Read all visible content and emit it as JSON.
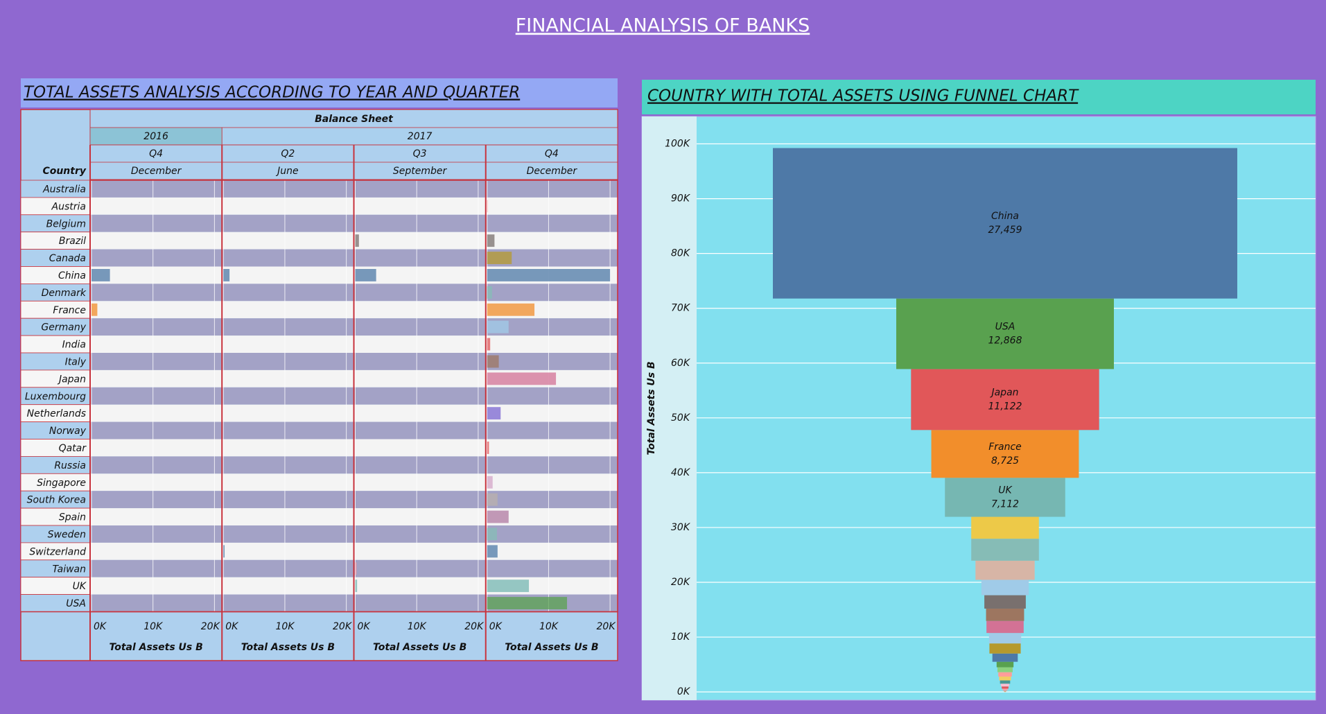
{
  "title": "FINANCIAL ANALYSIS OF BANKS",
  "chart_data": [
    {
      "type": "bar-table",
      "title": "TOTAL ASSETS ANALYSIS ACCORDING TO YEAR AND QUARTER",
      "header": "Balance Sheet",
      "row_header": "Country",
      "x_label": "Total Assets Us B",
      "categories": [
        "Australia",
        "Austria",
        "Belgium",
        "Brazil",
        "Canada",
        "China",
        "Denmark",
        "France",
        "Germany",
        "India",
        "Italy",
        "Japan",
        "Luxembourg",
        "Netherlands",
        "Norway",
        "Qatar",
        "Russia",
        "Singapore",
        "South Korea",
        "Spain",
        "Sweden",
        "Switzerland",
        "Taiwan",
        "UK",
        "USA"
      ],
      "colors": [
        "#a0cbe8",
        "#ff9d9a",
        "#8cd17d",
        "#79706e",
        "#b6992d",
        "#4e79a7",
        "#86bcb6",
        "#f28e2b",
        "#a0cbe8",
        "#e15759",
        "#9d7660",
        "#d37295",
        "#f1ce63",
        "#7b66d2",
        "#499894",
        "#e15759",
        "#fabfd2",
        "#d4a6c8",
        "#bab0ac",
        "#b07aa1",
        "#86bcb6",
        "#4e79a7",
        "#ff9da7",
        "#76b7b2",
        "#59a14f"
      ],
      "xlim": [
        0,
        21000
      ],
      "xticks": [
        {
          "value": 0,
          "label": "0K"
        },
        {
          "value": 10000,
          "label": "10K"
        },
        {
          "value": 20000,
          "label": "20K"
        }
      ],
      "years": [
        {
          "name": "2016",
          "series": [
            {
              "quarter": "Q4",
              "month": "December",
              "values": [
                0,
                0,
                0,
                0,
                0,
                3000,
                0,
                950,
                0,
                0,
                0,
                0,
                0,
                0,
                0,
                0,
                0,
                0,
                0,
                0,
                0,
                0,
                0,
                0,
                0
              ]
            }
          ]
        },
        {
          "name": "2017",
          "series": [
            {
              "quarter": "Q2",
              "month": "June",
              "values": [
                0,
                0,
                0,
                0,
                0,
                1000,
                0,
                0,
                0,
                0,
                0,
                0,
                0,
                0,
                0,
                0,
                0,
                0,
                0,
                0,
                0,
                200,
                0,
                0,
                0
              ]
            },
            {
              "quarter": "Q3",
              "month": "September",
              "values": [
                0,
                0,
                0,
                600,
                0,
                3400,
                0,
                0,
                0,
                0,
                0,
                0,
                0,
                0,
                0,
                0,
                0,
                0,
                0,
                0,
                0,
                0,
                200,
                300,
                0
              ]
            },
            {
              "quarter": "Q4",
              "month": "December",
              "values": [
                0,
                100,
                0,
                1200,
                4000,
                20000,
                800,
                7700,
                3500,
                500,
                1900,
                11200,
                0,
                2200,
                0,
                300,
                0,
                900,
                1700,
                3500,
                1600,
                1700,
                0,
                6800,
                13000
              ]
            }
          ]
        }
      ]
    },
    {
      "type": "funnel",
      "title": "COUNTRY WITH TOTAL ASSETS USING FUNNEL CHART",
      "y_label": "Total Assets Us B",
      "categories": [
        "China",
        "USA",
        "Japan",
        "France",
        "UK",
        null,
        null,
        null,
        null,
        null,
        null,
        null,
        null,
        null,
        null,
        null,
        null,
        null,
        null,
        null,
        null,
        null,
        null,
        null,
        null
      ],
      "values": [
        27459,
        12868,
        11122,
        8725,
        7112,
        4000,
        4000,
        3500,
        2800,
        2450,
        2250,
        2200,
        1900,
        1850,
        1500,
        1000,
        900,
        800,
        700,
        600,
        500,
        400,
        300,
        200,
        100
      ],
      "value_labels": [
        "27,459",
        "12,868",
        "11,122",
        "8,725",
        "7,112",
        null,
        null,
        null,
        null,
        null,
        null,
        null,
        null,
        null,
        null,
        null,
        null,
        null,
        null,
        null,
        null,
        null,
        null,
        null,
        null
      ],
      "colors": [
        "#4e79a7",
        "#59a14f",
        "#e15759",
        "#f28e2b",
        "#76b7b2",
        "#edc948",
        "#86bcb6",
        "#d7b5a6",
        "#a0cbe8",
        "#79706e",
        "#9d7660",
        "#d37295",
        "#a0cbe8",
        "#b6992d",
        "#4e79a7",
        "#59a14f",
        "#8cd17d",
        "#ff9d9a",
        "#f1ce63",
        "#499894",
        "#fabfd2",
        "#e15759",
        "#ff9da7",
        "#bab0ac",
        "#f28e2b"
      ],
      "ylim": [
        -1500,
        105000
      ],
      "yticks": [
        {
          "value": 0,
          "label": "0K"
        },
        {
          "value": 10000,
          "label": "10K"
        },
        {
          "value": 20000,
          "label": "20K"
        },
        {
          "value": 30000,
          "label": "30K"
        },
        {
          "value": 40000,
          "label": "40K"
        },
        {
          "value": 50000,
          "label": "50K"
        },
        {
          "value": 60000,
          "label": "60K"
        },
        {
          "value": 70000,
          "label": "70K"
        },
        {
          "value": 80000,
          "label": "80K"
        },
        {
          "value": 90000,
          "label": "90K"
        },
        {
          "value": 100000,
          "label": "100K"
        }
      ],
      "grid": true
    }
  ]
}
